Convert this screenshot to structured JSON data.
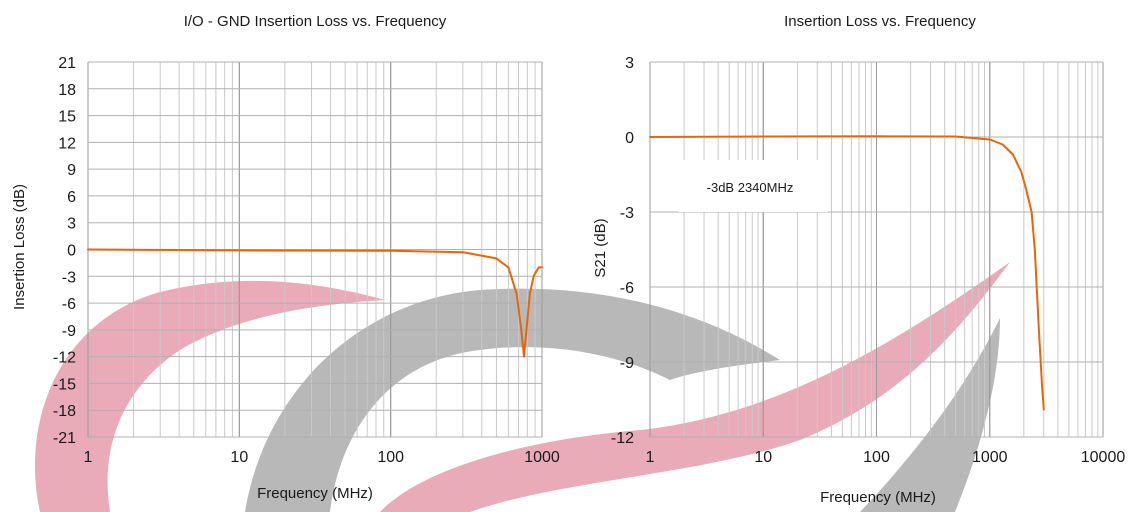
{
  "chart_data": [
    {
      "type": "line",
      "title": "I/O - GND Insertion Loss vs. Frequency",
      "xlabel": "Frequency  (MHz)",
      "ylabel": "Insertion Loss (dB)",
      "x_scale": "log",
      "xlim": [
        1,
        1000
      ],
      "ylim": [
        -21,
        21
      ],
      "x_ticks": [
        "1",
        "10",
        "100",
        "1000"
      ],
      "y_ticks": [
        "21",
        "18",
        "15",
        "12",
        "9",
        "6",
        "3",
        "0",
        "-3",
        "-6",
        "-9",
        "-12",
        "-15",
        "-18",
        "-21"
      ],
      "grid": true,
      "series": [
        {
          "color": "#e8650a",
          "x": [
            1,
            10,
            100,
            300,
            500,
            600,
            680,
            730,
            760,
            790,
            830,
            880,
            950,
            1000
          ],
          "y": [
            0,
            -0.1,
            -0.15,
            -0.3,
            -1,
            -2,
            -5,
            -9,
            -12,
            -9,
            -5,
            -3,
            -2,
            -2
          ]
        }
      ]
    },
    {
      "type": "line",
      "title": "Insertion Loss vs. Frequency",
      "xlabel": "Frequency  (MHz)",
      "ylabel": "S21  (dB)",
      "x_scale": "log",
      "xlim": [
        1,
        10000
      ],
      "ylim": [
        -12,
        3
      ],
      "x_ticks": [
        "1",
        "10",
        "100",
        "1000",
        "10000"
      ],
      "y_ticks": [
        "3",
        "0",
        "-3",
        "-6",
        "-9",
        "-12"
      ],
      "grid": true,
      "annotation": "-3dB  2340MHz",
      "series": [
        {
          "color": "#e8650a",
          "x": [
            1,
            10,
            100,
            500,
            1000,
            1300,
            1600,
            1900,
            2100,
            2340,
            2500,
            2700,
            2900,
            3000
          ],
          "y": [
            0,
            0.02,
            0.03,
            0.02,
            -0.1,
            -0.3,
            -0.7,
            -1.4,
            -2.1,
            -3.0,
            -4.5,
            -7.5,
            -10.0,
            -10.9
          ]
        }
      ]
    }
  ],
  "watermark_colors": {
    "red": "#e8a7b4",
    "gray": "#b5b5b5"
  }
}
